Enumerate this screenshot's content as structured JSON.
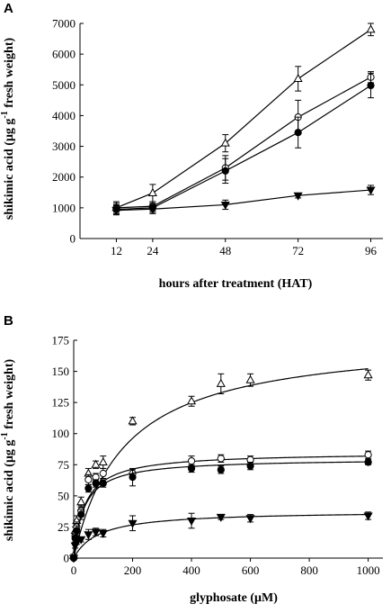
{
  "chart_data": [
    {
      "panel": "A",
      "type": "line",
      "xlabel": "hours after treatment (HAT)",
      "ylabel_main": "shikimic acid (μg g",
      "ylabel_sup": "-1",
      "ylabel_end": " fresh weight)",
      "xlim": [
        0,
        100
      ],
      "ylim": [
        0,
        7000
      ],
      "xticks": [
        12,
        24,
        48,
        72,
        96
      ],
      "yticks": [
        0,
        1000,
        2000,
        3000,
        4000,
        5000,
        6000,
        7000
      ],
      "grid": false,
      "x": [
        12,
        24,
        48,
        72,
        96
      ],
      "series": [
        {
          "marker": "triangle-open",
          "values": [
            1000,
            1480,
            3100,
            5200,
            6800
          ],
          "errors": [
            200,
            280,
            280,
            400,
            200
          ]
        },
        {
          "marker": "circle-open",
          "values": [
            1000,
            1050,
            2300,
            3950,
            5250
          ],
          "errors": [
            150,
            150,
            400,
            550,
            180
          ]
        },
        {
          "marker": "circle-filled",
          "values": [
            950,
            1000,
            2200,
            3450,
            4980
          ],
          "errors": [
            150,
            150,
            400,
            500,
            400
          ]
        },
        {
          "marker": "triangle-down-filled",
          "values": [
            920,
            960,
            1100,
            1400,
            1580
          ],
          "errors": [
            150,
            150,
            150,
            80,
            150
          ]
        }
      ]
    },
    {
      "panel": "B",
      "type": "scatter",
      "xlabel": "glyphosate (μM)",
      "ylabel_main": "shikimic acid (μg g",
      "ylabel_sup": "-1",
      "ylabel_end": " fresh weight)",
      "xlim": [
        0,
        1050
      ],
      "ylim": [
        0,
        175
      ],
      "xticks": [
        0,
        200,
        400,
        600,
        800,
        1000
      ],
      "yticks": [
        0,
        25,
        50,
        75,
        100,
        125,
        150,
        175
      ],
      "grid": false,
      "x": [
        0,
        5,
        10,
        25,
        50,
        75,
        100,
        200,
        400,
        500,
        600,
        1000
      ],
      "series": [
        {
          "marker": "triangle-open",
          "values": [
            2,
            22,
            30,
            45,
            68,
            75,
            77,
            110,
            126,
            140,
            143,
            147
          ],
          "errors": [
            1,
            3,
            4,
            4,
            4,
            3,
            5,
            3,
            4,
            8,
            5,
            4
          ],
          "fit": {
            "vmax": 178,
            "km": 170,
            "b": 0
          }
        },
        {
          "marker": "circle-open",
          "values": [
            0,
            18,
            25,
            38,
            63,
            65,
            68,
            68,
            78,
            80,
            79,
            83
          ],
          "errors": [
            1,
            3,
            4,
            4,
            4,
            3,
            4,
            3,
            4,
            3,
            3,
            3
          ],
          "fit": {
            "vmax": 85,
            "km": 38,
            "b": 0
          }
        },
        {
          "marker": "circle-filled",
          "values": [
            0,
            16,
            22,
            35,
            56,
            60,
            60,
            65,
            72,
            71,
            74,
            77
          ],
          "errors": [
            1,
            3,
            4,
            4,
            3,
            3,
            3,
            7,
            3,
            3,
            3,
            2
          ],
          "fit": {
            "vmax": 80,
            "km": 35,
            "b": 0
          }
        },
        {
          "marker": "triangle-down-filled",
          "values": [
            0,
            10,
            13,
            15,
            19,
            21,
            20,
            28,
            30,
            33,
            32,
            34
          ],
          "errors": [
            1,
            2,
            2,
            2,
            4,
            3,
            3,
            6,
            6,
            2,
            3,
            3
          ],
          "fit": {
            "vmax": 38,
            "km": 85,
            "b": 0
          }
        }
      ]
    }
  ]
}
